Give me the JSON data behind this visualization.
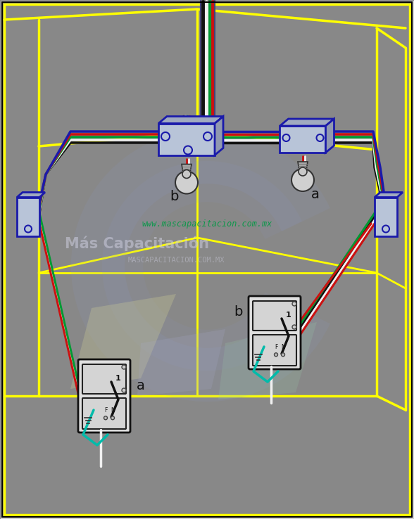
{
  "bg_color": "#aaaaaa",
  "fig_bg": "#888888",
  "wire_colors": {
    "black": "#111111",
    "white": "#f0f0f0",
    "green": "#009933",
    "red": "#cc1111",
    "blue_dark": "#1a1aaa",
    "gray": "#888888",
    "teal": "#00bbaa"
  },
  "yellow": "#ffff00",
  "box_face": "#b8c4d8",
  "box_edge": "#1a1aaa",
  "plate_face": "#e8e8e8",
  "plate_edge": "#111111",
  "pipe_gray": "#707070",
  "title_text": "www.mascapacitacion.com.mx",
  "subtitle_text": "Más Capacitación",
  "sub2_text": "MASCAPACITACION.COM.MX",
  "watermark_color": "#bbbbcc",
  "watermark_green": "#009944"
}
